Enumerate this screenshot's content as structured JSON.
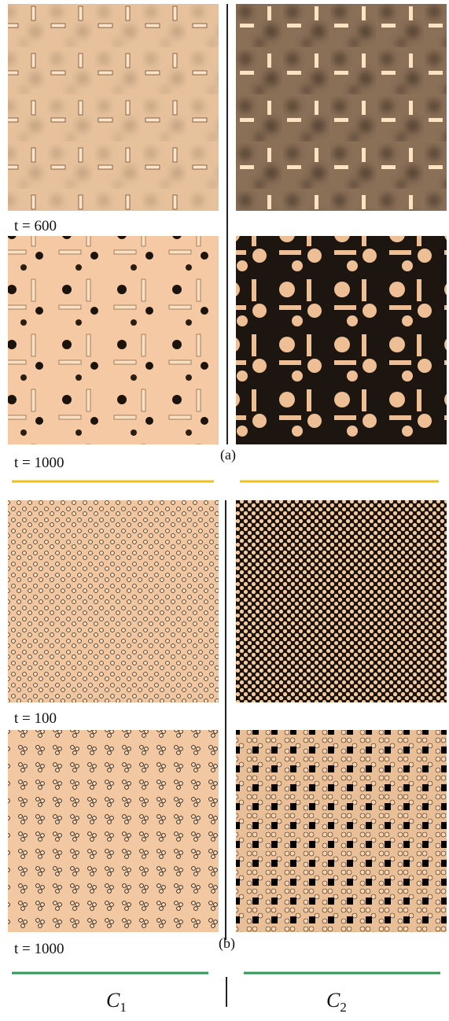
{
  "panels": {
    "a": {
      "label": "(a)",
      "times": [
        "t = 600",
        "t = 1000"
      ]
    },
    "b": {
      "label": "(b)",
      "times": [
        "t = 100",
        "t = 1000"
      ]
    }
  },
  "columns": [
    {
      "symbol": "C",
      "subscript": "1"
    },
    {
      "symbol": "C",
      "subscript": "2"
    }
  ]
}
